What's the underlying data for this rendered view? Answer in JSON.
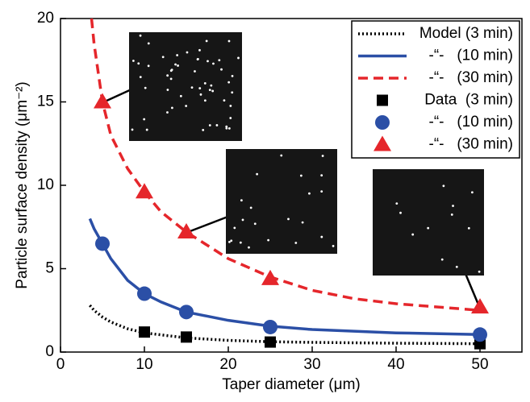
{
  "chart_data": {
    "type": "line",
    "x_label": "Taper diameter (μm)",
    "y_label": "Particle surface density (μm⁻²)",
    "xlim": [
      0,
      55
    ],
    "xticks": [
      0,
      10,
      20,
      30,
      40,
      50
    ],
    "ylim": [
      0,
      20
    ],
    "yticks": [
      0,
      5,
      10,
      15,
      20
    ],
    "legend": "upper right",
    "series": [
      {
        "name": "Model (3 min)",
        "kind": "line",
        "dash": "dotted",
        "color": "#000000",
        "x": [
          3.5,
          4,
          5,
          6,
          8,
          10,
          15,
          20,
          25,
          30,
          40,
          50
        ],
        "values": [
          2.8,
          2.5,
          2.1,
          1.8,
          1.4,
          1.15,
          0.85,
          0.7,
          0.62,
          0.58,
          0.53,
          0.5
        ]
      },
      {
        "name": "-“-   (10 min)",
        "kind": "line",
        "dash": "solid",
        "color": "#2b4fa6",
        "x": [
          3.5,
          4,
          5,
          6,
          8,
          10,
          12,
          15,
          20,
          25,
          30,
          40,
          50
        ],
        "values": [
          8,
          7.4,
          6.5,
          5.6,
          4.3,
          3.5,
          3.0,
          2.4,
          1.9,
          1.55,
          1.35,
          1.15,
          1.05
        ]
      },
      {
        "name": "-“-   (30 min)",
        "kind": "line",
        "dash": "dashed",
        "color": "#e5262b",
        "x": [
          3.7,
          4,
          5,
          6,
          8,
          10,
          12,
          15,
          20,
          25,
          30,
          35,
          40,
          45,
          50
        ],
        "values": [
          20,
          18.5,
          15,
          13,
          11,
          9.6,
          8.4,
          7.2,
          5.6,
          4.5,
          3.7,
          3.2,
          2.9,
          2.7,
          2.5
        ]
      },
      {
        "name": "Data  (3 min)",
        "kind": "scatter",
        "marker": "square",
        "color": "#000000",
        "x": [
          10,
          15,
          25,
          50
        ],
        "values": [
          1.2,
          0.9,
          0.6,
          0.5
        ]
      },
      {
        "name": "-“-   (10 min)",
        "kind": "scatter",
        "marker": "circle",
        "color": "#2b4fa6",
        "x": [
          5,
          10,
          15,
          25,
          50
        ],
        "values": [
          6.5,
          3.5,
          2.4,
          1.5,
          1.05
        ]
      },
      {
        "name": "-“-   (30 min)",
        "kind": "scatter",
        "marker": "triangle",
        "color": "#e5262b",
        "x": [
          5,
          10,
          15,
          25,
          50
        ],
        "values": [
          15,
          9.6,
          7.2,
          4.4,
          2.7
        ]
      }
    ]
  }
}
